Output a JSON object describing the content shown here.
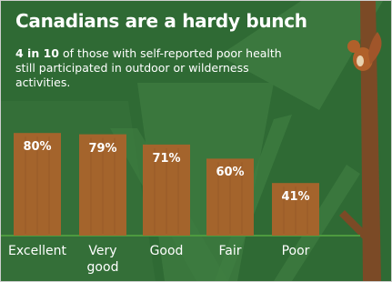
{
  "chart_data": {
    "type": "bar",
    "title": "Canadians are a hardy bunch",
    "subtitle_bold": "4 in 10",
    "subtitle": "of those with self-reported poor health still participated in outdoor or wilderness activities.",
    "categories": [
      "Excellent",
      "Very good",
      "Good",
      "Fair",
      "Poor"
    ],
    "values": [
      80,
      79,
      71,
      60,
      41
    ],
    "value_labels": [
      "80%",
      "79%",
      "71%",
      "60%",
      "41%"
    ],
    "color": "#a4642c"
  }
}
